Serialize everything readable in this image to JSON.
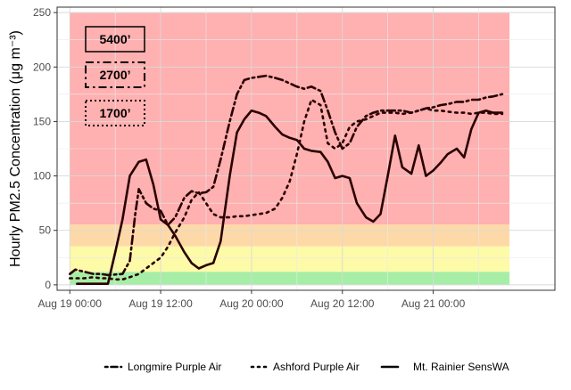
{
  "chart_data": {
    "type": "line",
    "title": "",
    "xlabel": "",
    "ylabel": "Hourly PM2.5 Concentration (μg m⁻³)",
    "xlim": [
      -0.07,
      2.67
    ],
    "ylim": [
      -5,
      255
    ],
    "x_ticks": [
      {
        "value": 0.0,
        "label": "Aug 19 00:00"
      },
      {
        "value": 0.5,
        "label": "Aug 19 12:00"
      },
      {
        "value": 1.0,
        "label": "Aug 20 00:00"
      },
      {
        "value": 1.5,
        "label": "Aug 20 12:00"
      },
      {
        "value": 2.0,
        "label": "Aug 21 00:00"
      }
    ],
    "y_ticks": [
      0,
      50,
      100,
      150,
      200,
      250
    ],
    "grid": true,
    "legend_position": "bottom",
    "background_bands": [
      {
        "y0": 0,
        "y1": 12,
        "color": "#a6eea6"
      },
      {
        "y0": 12,
        "y1": 35.4,
        "color": "#fdfaa8"
      },
      {
        "y0": 35.4,
        "y1": 55.4,
        "color": "#fed9a8"
      },
      {
        "y0": 55.4,
        "y1": 250,
        "color": "#ffb0b0"
      }
    ],
    "bands_x_range": [
      0,
      2.42
    ],
    "inset_labels": [
      {
        "text": "5400’",
        "style": "solid"
      },
      {
        "text": "2700’",
        "style": "dashdot"
      },
      {
        "text": "1700’",
        "style": "dotted"
      }
    ],
    "series": [
      {
        "name": "Longmire Purple Air",
        "style": "dashdot",
        "x": [
          0.0,
          0.03,
          0.08,
          0.13,
          0.17,
          0.21,
          0.29,
          0.33,
          0.36,
          0.38,
          0.42,
          0.46,
          0.5,
          0.54,
          0.58,
          0.63,
          0.67,
          0.71,
          0.75,
          0.79,
          0.83,
          0.88,
          0.92,
          0.96,
          1.0,
          1.04,
          1.08,
          1.13,
          1.17,
          1.21,
          1.25,
          1.29,
          1.33,
          1.38,
          1.42,
          1.46,
          1.5,
          1.54,
          1.58,
          1.63,
          1.67,
          1.71,
          1.75,
          1.79,
          1.83,
          1.88,
          1.92,
          1.96,
          2.0,
          2.04,
          2.08,
          2.13,
          2.17,
          2.21,
          2.25,
          2.29,
          2.33,
          2.38
        ],
        "values": [
          10,
          14,
          12,
          10,
          10,
          9,
          10,
          22,
          65,
          88,
          75,
          70,
          68,
          55,
          62,
          80,
          86,
          84,
          85,
          90,
          115,
          150,
          175,
          188,
          190,
          191,
          192,
          190,
          188,
          185,
          182,
          180,
          182,
          178,
          160,
          140,
          125,
          130,
          145,
          155,
          158,
          160,
          160,
          160,
          160,
          158,
          160,
          162,
          163,
          165,
          166,
          168,
          168,
          170,
          170,
          172,
          173,
          175
        ]
      },
      {
        "name": "Ashford Purple Air",
        "style": "dotted",
        "x": [
          0.0,
          0.04,
          0.08,
          0.13,
          0.17,
          0.21,
          0.25,
          0.29,
          0.33,
          0.38,
          0.42,
          0.46,
          0.5,
          0.52,
          0.54,
          0.58,
          0.63,
          0.67,
          0.71,
          0.75,
          0.79,
          0.83,
          0.88,
          0.92,
          0.96,
          1.0,
          1.04,
          1.08,
          1.13,
          1.17,
          1.21,
          1.25,
          1.29,
          1.33,
          1.38,
          1.42,
          1.46,
          1.5,
          1.54,
          1.58,
          1.63,
          1.67,
          1.71,
          1.75,
          1.79,
          1.83,
          1.88,
          1.92,
          1.96,
          2.0,
          2.04,
          2.08,
          2.13,
          2.17,
          2.21,
          2.25,
          2.29,
          2.33,
          2.38
        ],
        "values": [
          6,
          6,
          6,
          7,
          6,
          6,
          5,
          5,
          7,
          10,
          15,
          20,
          25,
          30,
          35,
          48,
          62,
          78,
          85,
          75,
          65,
          62,
          62,
          63,
          63,
          64,
          65,
          66,
          70,
          80,
          95,
          120,
          150,
          170,
          165,
          130,
          125,
          130,
          145,
          150,
          152,
          155,
          158,
          158,
          158,
          157,
          158,
          160,
          162,
          160,
          160,
          159,
          158,
          158,
          157,
          158,
          158,
          157,
          157
        ]
      },
      {
        "name": "Mt. Rainier SensWA",
        "style": "solid",
        "x": [
          0.04,
          0.08,
          0.13,
          0.17,
          0.21,
          0.25,
          0.29,
          0.33,
          0.38,
          0.42,
          0.46,
          0.5,
          0.54,
          0.58,
          0.63,
          0.67,
          0.71,
          0.75,
          0.79,
          0.83,
          0.88,
          0.92,
          0.96,
          1.0,
          1.04,
          1.08,
          1.13,
          1.17,
          1.21,
          1.25,
          1.29,
          1.33,
          1.38,
          1.42,
          1.46,
          1.5,
          1.54,
          1.58,
          1.63,
          1.67,
          1.71,
          1.75,
          1.79,
          1.83,
          1.88,
          1.92,
          1.96,
          2.0,
          2.04,
          2.08,
          2.13,
          2.17,
          2.21,
          2.25,
          2.29,
          2.33,
          2.38
        ],
        "values": [
          1,
          1,
          1,
          1,
          1,
          30,
          60,
          100,
          113,
          115,
          92,
          60,
          55,
          45,
          30,
          20,
          15,
          18,
          20,
          40,
          100,
          140,
          152,
          160,
          158,
          155,
          145,
          138,
          135,
          133,
          125,
          123,
          122,
          113,
          98,
          100,
          98,
          75,
          62,
          58,
          65,
          100,
          137,
          108,
          102,
          128,
          100,
          105,
          112,
          120,
          125,
          117,
          143,
          158,
          160,
          158,
          158
        ]
      }
    ]
  }
}
